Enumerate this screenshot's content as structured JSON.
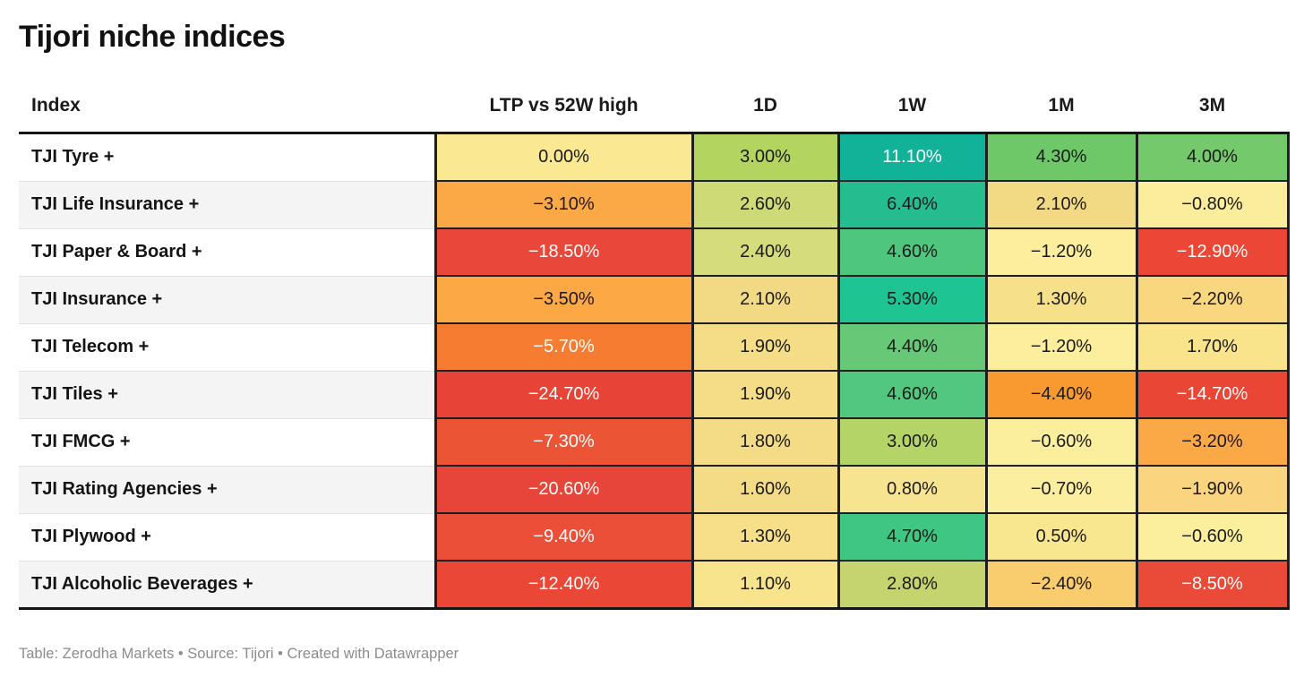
{
  "title": "Tijori niche indices",
  "footer": "Table: Zerodha Markets • Source: Tijori • Created with Datawrapper",
  "colors": {
    "dark_text": "#1a1a1a",
    "white_text": "#ffffff",
    "grid_line": "#1e1e1e",
    "zebra_gray": "#f4f4f4"
  },
  "chart_data": {
    "type": "table",
    "title": "Tijori niche indices",
    "columns": [
      "Index",
      "LTP vs 52W high",
      "1D",
      "1W",
      "1M",
      "3M"
    ],
    "rows": [
      {
        "index": "TJI Tyre +",
        "cells": [
          {
            "v": "0.00%",
            "bg": "#fae992",
            "fg": "#1a1a1a"
          },
          {
            "v": "3.00%",
            "bg": "#b3d45f",
            "fg": "#1a1a1a"
          },
          {
            "v": "11.10%",
            "bg": "#12b298",
            "fg": "#ffffff"
          },
          {
            "v": "4.30%",
            "bg": "#6ec868",
            "fg": "#1a1a1a"
          },
          {
            "v": "4.00%",
            "bg": "#74c96b",
            "fg": "#1a1a1a"
          }
        ]
      },
      {
        "index": "TJI Life Insurance +",
        "cells": [
          {
            "v": "−3.10%",
            "bg": "#fba947",
            "fg": "#1a1a1a"
          },
          {
            "v": "2.60%",
            "bg": "#cdda76",
            "fg": "#1a1a1a"
          },
          {
            "v": "6.40%",
            "bg": "#25bd90",
            "fg": "#1a1a1a"
          },
          {
            "v": "2.10%",
            "bg": "#f2da85",
            "fg": "#1a1a1a"
          },
          {
            "v": "−0.80%",
            "bg": "#fbed9b",
            "fg": "#1a1a1a"
          }
        ]
      },
      {
        "index": "TJI Paper & Board +",
        "cells": [
          {
            "v": "−18.50%",
            "bg": "#e9473a",
            "fg": "#ffffff"
          },
          {
            "v": "2.40%",
            "bg": "#d5dc7c",
            "fg": "#1a1a1a"
          },
          {
            "v": "4.60%",
            "bg": "#4ec67e",
            "fg": "#1a1a1a"
          },
          {
            "v": "−1.20%",
            "bg": "#fcee9d",
            "fg": "#1a1a1a"
          },
          {
            "v": "−12.90%",
            "bg": "#ec4636",
            "fg": "#ffffff"
          }
        ]
      },
      {
        "index": "TJI Insurance +",
        "cells": [
          {
            "v": "−3.50%",
            "bg": "#fba845",
            "fg": "#1a1a1a"
          },
          {
            "v": "2.10%",
            "bg": "#f2da85",
            "fg": "#1a1a1a"
          },
          {
            "v": "5.30%",
            "bg": "#1ec492",
            "fg": "#1a1a1a"
          },
          {
            "v": "1.30%",
            "bg": "#f6e08a",
            "fg": "#1a1a1a"
          },
          {
            "v": "−2.20%",
            "bg": "#f9d77f",
            "fg": "#1a1a1a"
          }
        ]
      },
      {
        "index": "TJI Telecom +",
        "cells": [
          {
            "v": "−5.70%",
            "bg": "#f57c31",
            "fg": "#ffffff"
          },
          {
            "v": "1.90%",
            "bg": "#f5dd88",
            "fg": "#1a1a1a"
          },
          {
            "v": "4.40%",
            "bg": "#67c878",
            "fg": "#1a1a1a"
          },
          {
            "v": "−1.20%",
            "bg": "#fcee9d",
            "fg": "#1a1a1a"
          },
          {
            "v": "1.70%",
            "bg": "#f9e48c",
            "fg": "#1a1a1a"
          }
        ]
      },
      {
        "index": "TJI Tiles +",
        "cells": [
          {
            "v": "−24.70%",
            "bg": "#e74437",
            "fg": "#ffffff"
          },
          {
            "v": "1.90%",
            "bg": "#f5dd88",
            "fg": "#1a1a1a"
          },
          {
            "v": "4.60%",
            "bg": "#52c77f",
            "fg": "#1a1a1a"
          },
          {
            "v": "−4.40%",
            "bg": "#f99a30",
            "fg": "#1a1a1a"
          },
          {
            "v": "−14.70%",
            "bg": "#ea4636",
            "fg": "#ffffff"
          }
        ]
      },
      {
        "index": "TJI FMCG +",
        "cells": [
          {
            "v": "−7.30%",
            "bg": "#ec5436",
            "fg": "#ffffff"
          },
          {
            "v": "1.80%",
            "bg": "#f4dc86",
            "fg": "#1a1a1a"
          },
          {
            "v": "3.00%",
            "bg": "#b4d467",
            "fg": "#1a1a1a"
          },
          {
            "v": "−0.60%",
            "bg": "#fbee9c",
            "fg": "#1a1a1a"
          },
          {
            "v": "−3.20%",
            "bg": "#fba847",
            "fg": "#1a1a1a"
          }
        ]
      },
      {
        "index": "TJI Rating Agencies +",
        "cells": [
          {
            "v": "−20.60%",
            "bg": "#e74539",
            "fg": "#ffffff"
          },
          {
            "v": "1.60%",
            "bg": "#f4dc86",
            "fg": "#1a1a1a"
          },
          {
            "v": "0.80%",
            "bg": "#f7e491",
            "fg": "#1a1a1a"
          },
          {
            "v": "−0.70%",
            "bg": "#fbee9e",
            "fg": "#1a1a1a"
          },
          {
            "v": "−1.90%",
            "bg": "#fad47e",
            "fg": "#1a1a1a"
          }
        ]
      },
      {
        "index": "TJI Plywood +",
        "cells": [
          {
            "v": "−9.40%",
            "bg": "#eb4f38",
            "fg": "#ffffff"
          },
          {
            "v": "1.30%",
            "bg": "#f6df88",
            "fg": "#1a1a1a"
          },
          {
            "v": "4.70%",
            "bg": "#3fc682",
            "fg": "#1a1a1a"
          },
          {
            "v": "0.50%",
            "bg": "#f9e78f",
            "fg": "#1a1a1a"
          },
          {
            "v": "−0.60%",
            "bg": "#fbee9c",
            "fg": "#1a1a1a"
          }
        ]
      },
      {
        "index": "TJI Alcoholic Beverages +",
        "cells": [
          {
            "v": "−12.40%",
            "bg": "#ea4737",
            "fg": "#ffffff"
          },
          {
            "v": "1.10%",
            "bg": "#f8e48c",
            "fg": "#1a1a1a"
          },
          {
            "v": "2.80%",
            "bg": "#c6d46f",
            "fg": "#1a1a1a"
          },
          {
            "v": "−2.40%",
            "bg": "#f9cd6e",
            "fg": "#1a1a1a"
          },
          {
            "v": "−8.50%",
            "bg": "#ea4b39",
            "fg": "#ffffff"
          }
        ]
      }
    ]
  }
}
